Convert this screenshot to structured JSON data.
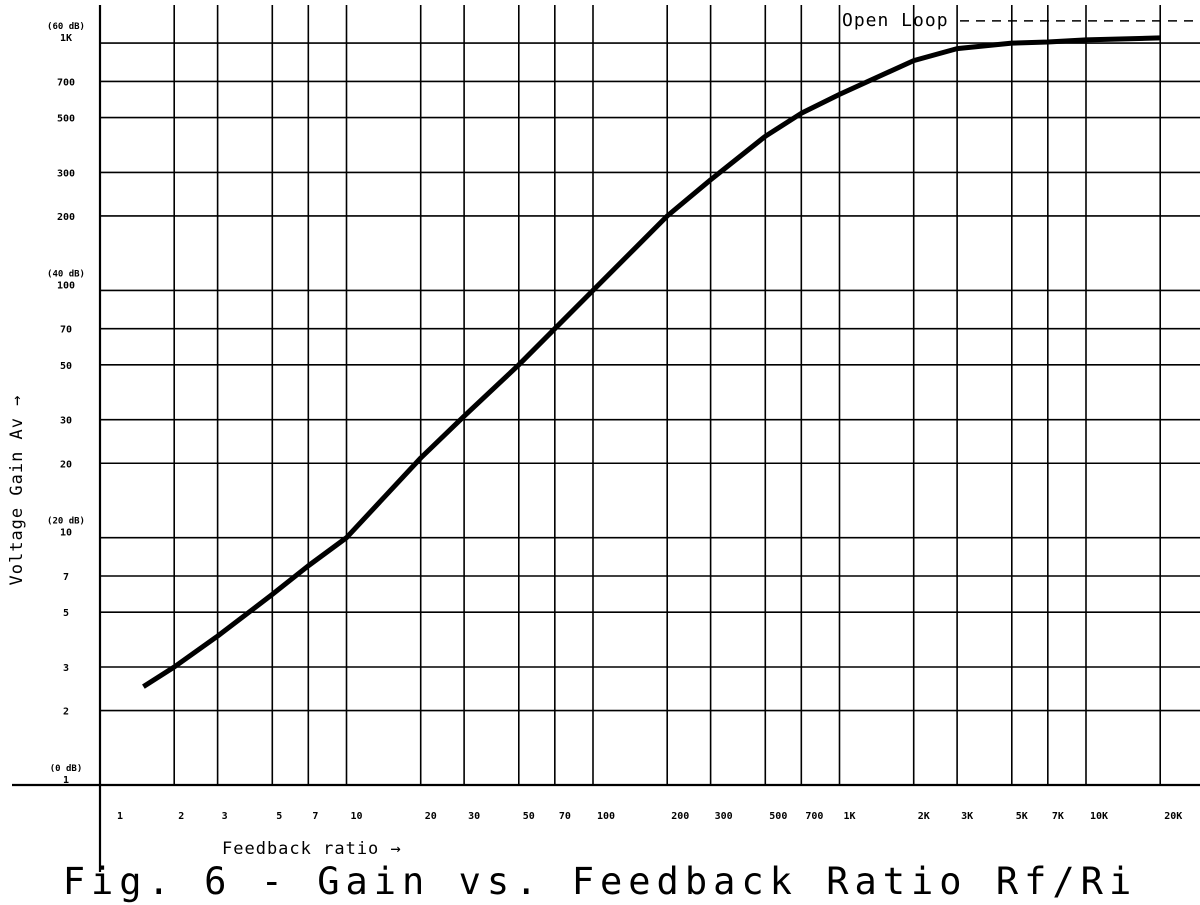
{
  "caption": "Fig. 6 - Gain vs. Feedback Ratio Rf/Ri",
  "chart_data": {
    "type": "line",
    "title": "Fig. 6 - Gain vs. Feedback Ratio Rf/Ri",
    "xlabel": "Feedback ratio →",
    "ylabel": "Voltage Gain Av →",
    "x_scale": "log",
    "y_scale": "log",
    "xlim": [
      1,
      20000
    ],
    "ylim": [
      1,
      1000
    ],
    "grid": true,
    "x_ticks": [
      {
        "value": 1,
        "label": "1"
      },
      {
        "value": 2,
        "label": "2"
      },
      {
        "value": 3,
        "label": "3"
      },
      {
        "value": 5,
        "label": "5"
      },
      {
        "value": 7,
        "label": "7"
      },
      {
        "value": 10,
        "label": "10"
      },
      {
        "value": 20,
        "label": "20"
      },
      {
        "value": 30,
        "label": "30"
      },
      {
        "value": 50,
        "label": "50"
      },
      {
        "value": 70,
        "label": "70"
      },
      {
        "value": 100,
        "label": "100"
      },
      {
        "value": 200,
        "label": "200"
      },
      {
        "value": 300,
        "label": "300"
      },
      {
        "value": 500,
        "label": "500"
      },
      {
        "value": 700,
        "label": "700"
      },
      {
        "value": 1000,
        "label": "1K"
      },
      {
        "value": 2000,
        "label": "2K"
      },
      {
        "value": 3000,
        "label": "3K"
      },
      {
        "value": 5000,
        "label": "5K"
      },
      {
        "value": 7000,
        "label": "7K"
      },
      {
        "value": 10000,
        "label": "10K"
      },
      {
        "value": 20000,
        "label": "20K"
      }
    ],
    "y_ticks": [
      {
        "value": 1,
        "label": "1",
        "db": "(0 dB)"
      },
      {
        "value": 2,
        "label": "2"
      },
      {
        "value": 3,
        "label": "3"
      },
      {
        "value": 5,
        "label": "5"
      },
      {
        "value": 7,
        "label": "7"
      },
      {
        "value": 10,
        "label": "10",
        "db": "(20 dB)"
      },
      {
        "value": 20,
        "label": "20"
      },
      {
        "value": 30,
        "label": "30"
      },
      {
        "value": 50,
        "label": "50"
      },
      {
        "value": 70,
        "label": "70"
      },
      {
        "value": 100,
        "label": "100",
        "db": "(40 dB)"
      },
      {
        "value": 200,
        "label": "200"
      },
      {
        "value": 300,
        "label": "300"
      },
      {
        "value": 500,
        "label": "500"
      },
      {
        "value": 700,
        "label": "700"
      },
      {
        "value": 1000,
        "label": "1K",
        "db": "(60 dB)"
      }
    ],
    "series": [
      {
        "x": [
          1.5,
          2,
          3,
          5,
          7,
          10,
          20,
          30,
          50,
          70,
          100,
          200,
          300,
          500,
          700,
          1000,
          2000,
          3000,
          5000,
          7000,
          10000,
          20000
        ],
        "y": [
          2.5,
          3,
          4,
          5.9,
          7.7,
          10,
          21,
          31,
          50,
          70,
          100,
          200,
          280,
          420,
          520,
          620,
          850,
          950,
          1000,
          1010,
          1030,
          1050
        ]
      }
    ],
    "annotation": {
      "text": "Open Loop",
      "style": "dashed",
      "value": 1050
    }
  }
}
